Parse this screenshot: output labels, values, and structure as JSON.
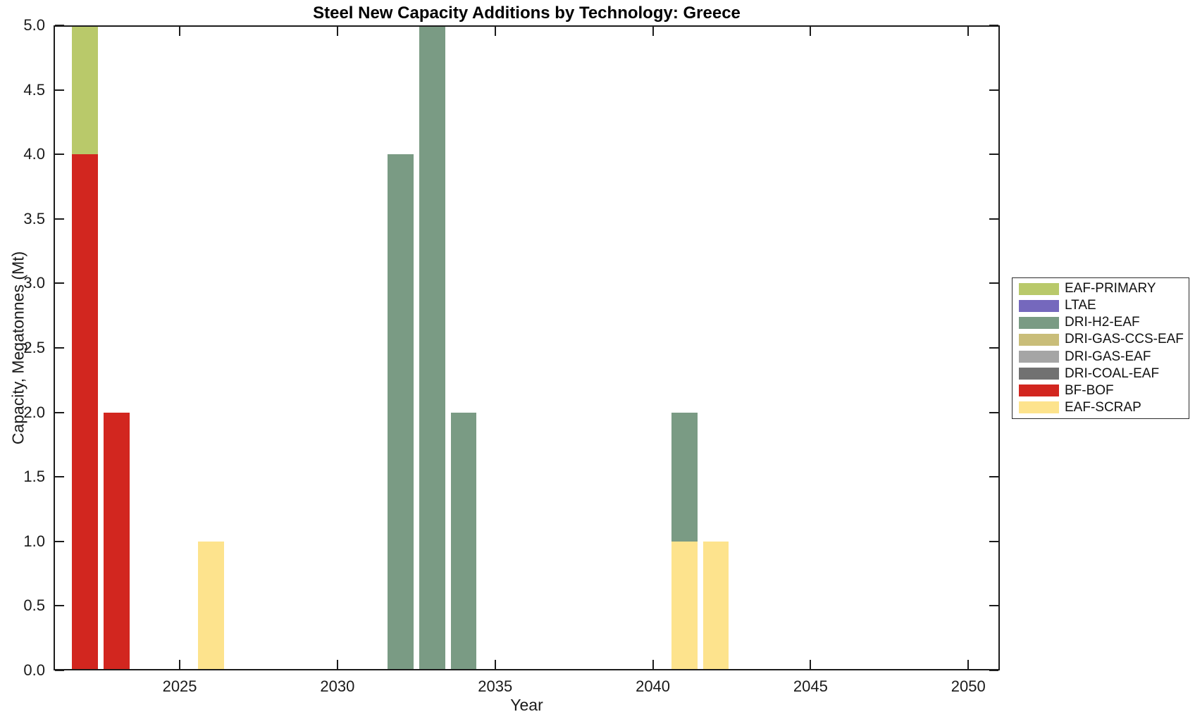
{
  "chart_data": {
    "type": "bar",
    "stacked": true,
    "title": "Steel New Capacity Additions by Technology: Greece",
    "xlabel": "Year",
    "ylabel": "Capacity, Megatonnes (Mt)",
    "xlim": [
      2021,
      2051
    ],
    "ylim": [
      0,
      5
    ],
    "grid": false,
    "legend_position": "right-outside",
    "x_ticks": [
      2025,
      2030,
      2035,
      2040,
      2045,
      2050
    ],
    "y_ticks": [
      0,
      0.5,
      1,
      1.5,
      2,
      2.5,
      3,
      3.5,
      4,
      4.5,
      5
    ],
    "y_tick_labels": [
      "0.0",
      "0.5",
      "1.0",
      "1.5",
      "2.0",
      "2.5",
      "3.0",
      "3.5",
      "4.0",
      "4.5",
      "5.0"
    ],
    "bar_width_years": 0.82,
    "legend_entries": [
      "EAF-PRIMARY",
      "LTAE",
      "DRI-H2-EAF",
      "DRI-GAS-CCS-EAF",
      "DRI-GAS-EAF",
      "DRI-COAL-EAF",
      "BF-BOF",
      "EAF-SCRAP"
    ],
    "series_colors": {
      "EAF-PRIMARY": "#b9c96a",
      "LTAE": "#7568bd",
      "DRI-H2-EAF": "#7a9b84",
      "DRI-GAS-CCS-EAF": "#c9bd79",
      "DRI-GAS-EAF": "#a5a5a5",
      "DRI-COAL-EAF": "#717171",
      "BF-BOF": "#d2261f",
      "EAF-SCRAP": "#fde38d"
    },
    "bars": [
      {
        "year": 2022,
        "segments": [
          {
            "tech": "BF-BOF",
            "value": 4.0
          },
          {
            "tech": "EAF-PRIMARY",
            "value": 1.0
          }
        ]
      },
      {
        "year": 2023,
        "segments": [
          {
            "tech": "BF-BOF",
            "value": 2.0
          }
        ]
      },
      {
        "year": 2026,
        "segments": [
          {
            "tech": "EAF-SCRAP",
            "value": 1.0
          }
        ]
      },
      {
        "year": 2032,
        "segments": [
          {
            "tech": "DRI-H2-EAF",
            "value": 4.0
          }
        ]
      },
      {
        "year": 2033,
        "segments": [
          {
            "tech": "DRI-H2-EAF",
            "value": 5.0
          }
        ]
      },
      {
        "year": 2034,
        "segments": [
          {
            "tech": "DRI-H2-EAF",
            "value": 2.0
          }
        ]
      },
      {
        "year": 2041,
        "segments": [
          {
            "tech": "EAF-SCRAP",
            "value": 1.0
          },
          {
            "tech": "DRI-H2-EAF",
            "value": 1.0
          }
        ]
      },
      {
        "year": 2042,
        "segments": [
          {
            "tech": "EAF-SCRAP",
            "value": 1.0
          }
        ]
      }
    ]
  }
}
